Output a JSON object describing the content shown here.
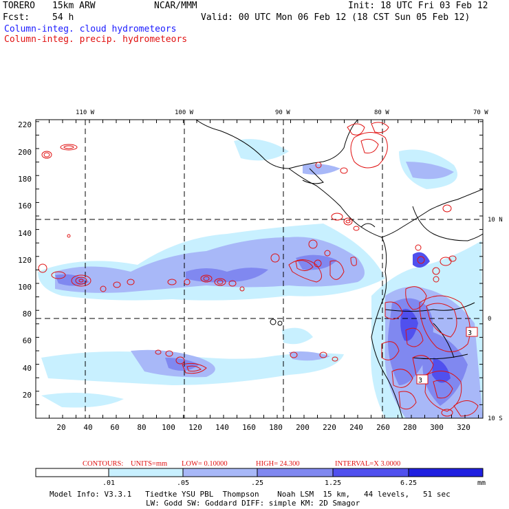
{
  "header": {
    "model": "TORERO",
    "resolution": "15km ARW",
    "org": "NCAR/MMM",
    "init": "Init: 18 UTC Fri 03 Feb 12",
    "fcst_label": "Fcst:",
    "fcst_value": "54 h",
    "valid": "Valid: 00 UTC Mon 06 Feb 12 (18 CST Sun 05 Feb 12)",
    "field1": "Column-integ. cloud hydrometeors",
    "field2": "Column-integ. precip. hydrometeors"
  },
  "top_lon_labels": [
    "110 W",
    "100 W",
    "90 W",
    "80 W",
    "70 W"
  ],
  "right_lat_labels": [
    "10 N",
    "0",
    "10 S"
  ],
  "y_ticks": [
    "220",
    "200",
    "180",
    "160",
    "140",
    "120",
    "100",
    "80",
    "60",
    "40",
    "20"
  ],
  "x_ticks": [
    "20",
    "40",
    "60",
    "80",
    "100",
    "120",
    "140",
    "160",
    "180",
    "200",
    "220",
    "240",
    "260",
    "280",
    "300",
    "320"
  ],
  "contour_labels": [
    "3",
    "3"
  ],
  "contour_info": {
    "label": "CONTOURS:",
    "units": "UNITS=mm",
    "low": "LOW= 0.10000",
    "high": "HIGH= 24.300",
    "interval": "INTERVAL=X 3.0000"
  },
  "colorbar": {
    "labels": [
      ".01",
      ".05",
      ".25",
      "1.25",
      "6.25"
    ],
    "unit": "mm",
    "colors": [
      "#ffffff",
      "#c8f0ff",
      "#a8b8f8",
      "#8088f0",
      "#5050ee",
      "#2020e0"
    ]
  },
  "footer": {
    "line1": "Model Info: V3.3.1   Tiedtke YSU PBL  Thompson    Noah LSM  15 km,   44 levels,   51 sec",
    "line2": "LW: Godd SW: Goddard DIFF: simple KM: 2D Smagor"
  }
}
